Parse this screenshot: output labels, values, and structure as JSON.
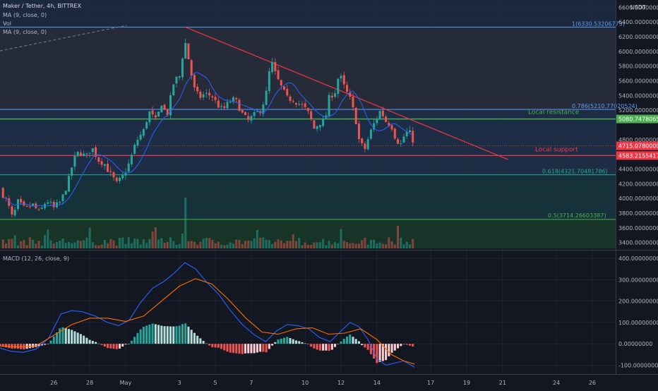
{
  "header": {
    "title": "Maker / Tether, 4h, BITTREX",
    "indicators": [
      "MA (9, close, 0)",
      "Vol",
      "MA (9, close, 0)"
    ],
    "currency": "USDT"
  },
  "macd": {
    "label": "MACD (12, 26, close, 9)"
  },
  "colors": {
    "background": "#131722",
    "bull": "#26a69a",
    "bear": "#ef5350",
    "ma": "#2962ff",
    "signal": "#ff6d00",
    "resistance": "#4caf50",
    "support": "#f23645",
    "trendline": "#f23645",
    "fib_top": "#2962ff",
    "fib_mid": "#4caf50",
    "fib_low": "#089981"
  },
  "annotations": {
    "fib_1": "1(6330.53206773)",
    "fib_0786": "0.786(5210.77020524)",
    "fib_0618": "0.618(4321.70481786)",
    "fib_05": "0.5(3714.26603387)",
    "local_resistance": "Local resistance",
    "local_support": "Local support"
  },
  "price_tags": {
    "resistance": "5080.74780652",
    "current": "4715.07800000",
    "support": "4583.21554175"
  },
  "price_axis": [
    {
      "label": "6600.00000000",
      "v": 6600
    },
    {
      "label": "6400.00000000",
      "v": 6400
    },
    {
      "label": "6200.00000000",
      "v": 6200
    },
    {
      "label": "6000.00000000",
      "v": 6000
    },
    {
      "label": "5800.00000000",
      "v": 5800
    },
    {
      "label": "5600.00000000",
      "v": 5600
    },
    {
      "label": "5400.00000000",
      "v": 5400
    },
    {
      "label": "5200.00000000",
      "v": 5200
    },
    {
      "label": "4800.00000000",
      "v": 4800
    },
    {
      "label": "4400.00000000",
      "v": 4400
    },
    {
      "label": "4200.00000000",
      "v": 4200
    },
    {
      "label": "4000.00000000",
      "v": 4000
    },
    {
      "label": "3800.00000000",
      "v": 3800
    },
    {
      "label": "3600.00000000",
      "v": 3600
    },
    {
      "label": "3400.00000000",
      "v": 3400
    }
  ],
  "macd_axis": [
    {
      "label": "400.00000000",
      "v": 400
    },
    {
      "label": "300.00000000",
      "v": 300
    },
    {
      "label": "200.00000000",
      "v": 200
    },
    {
      "label": "100.00000000",
      "v": 100
    },
    {
      "label": "0.00000000",
      "v": 0
    },
    {
      "label": "-100.00000000",
      "v": -100
    }
  ],
  "date_axis": [
    {
      "label": "26",
      "d": 26
    },
    {
      "label": "28",
      "d": 28
    },
    {
      "label": "May",
      "d": 30
    },
    {
      "label": "3",
      "d": 33
    },
    {
      "label": "5",
      "d": 35
    },
    {
      "label": "7",
      "d": 37
    },
    {
      "label": "10",
      "d": 40
    },
    {
      "label": "12",
      "d": 42
    },
    {
      "label": "14",
      "d": 44
    },
    {
      "label": "17",
      "d": 47
    },
    {
      "label": "19",
      "d": 49
    },
    {
      "label": "21",
      "d": 51
    },
    {
      "label": "24",
      "d": 54
    },
    {
      "label": "26",
      "d": 56
    }
  ],
  "chart_data": {
    "type": "candlestick",
    "price_ylim": [
      3320,
      6660
    ],
    "macd_ylim": [
      -135,
      420
    ],
    "fib_levels": [
      {
        "ratio": "1",
        "price": 6330.53206773
      },
      {
        "ratio": "0.786",
        "price": 5210.77020524
      },
      {
        "ratio": "0.618",
        "price": 4321.70481786
      },
      {
        "ratio": "0.5",
        "price": 3714.26603387
      }
    ],
    "resistance": 5080.74780652,
    "support": 4583.21554175,
    "last_price": 4715.078,
    "trendline": [
      [
        33.33,
        6330
      ],
      [
        51.3,
        4530
      ]
    ],
    "close_path": [
      [
        23.0,
        4130
      ],
      [
        23.4,
        3950
      ],
      [
        23.7,
        3730
      ],
      [
        24.0,
        3950
      ],
      [
        24.4,
        3850
      ],
      [
        24.8,
        3920
      ],
      [
        25.2,
        3800
      ],
      [
        25.6,
        3980
      ],
      [
        26.0,
        3870
      ],
      [
        26.4,
        3960
      ],
      [
        26.8,
        4230
      ],
      [
        27.1,
        4520
      ],
      [
        27.4,
        4640
      ],
      [
        27.8,
        4560
      ],
      [
        28.1,
        4700
      ],
      [
        28.5,
        4520
      ],
      [
        28.8,
        4480
      ],
      [
        29.1,
        4350
      ],
      [
        29.5,
        4200
      ],
      [
        29.8,
        4280
      ],
      [
        30.2,
        4480
      ],
      [
        30.6,
        4780
      ],
      [
        31.0,
        4920
      ],
      [
        31.3,
        5180
      ],
      [
        31.7,
        5050
      ],
      [
        32.0,
        5300
      ],
      [
        32.3,
        5120
      ],
      [
        32.7,
        5600
      ],
      [
        33.0,
        5660
      ],
      [
        33.3,
        6150
      ],
      [
        33.5,
        5900
      ],
      [
        33.8,
        5500
      ],
      [
        34.1,
        5370
      ],
      [
        34.4,
        5420
      ],
      [
        34.8,
        5400
      ],
      [
        35.1,
        5280
      ],
      [
        35.4,
        5200
      ],
      [
        35.8,
        5320
      ],
      [
        36.1,
        5350
      ],
      [
        36.5,
        5150
      ],
      [
        36.8,
        5050
      ],
      [
        37.1,
        5120
      ],
      [
        37.5,
        5200
      ],
      [
        37.8,
        5380
      ],
      [
        38.1,
        5880
      ],
      [
        38.4,
        5650
      ],
      [
        38.7,
        5500
      ],
      [
        39.0,
        5360
      ],
      [
        39.3,
        5350
      ],
      [
        39.6,
        5300
      ],
      [
        39.9,
        5250
      ],
      [
        40.2,
        5150
      ],
      [
        40.5,
        4950
      ],
      [
        40.8,
        5030
      ],
      [
        41.1,
        5050
      ],
      [
        41.4,
        5450
      ],
      [
        41.6,
        5380
      ],
      [
        41.9,
        5700
      ],
      [
        42.2,
        5500
      ],
      [
        42.5,
        5350
      ],
      [
        42.8,
        5100
      ],
      [
        43.0,
        4800
      ],
      [
        43.3,
        4650
      ],
      [
        43.6,
        4880
      ],
      [
        43.9,
        5050
      ],
      [
        44.2,
        5200
      ],
      [
        44.5,
        5050
      ],
      [
        44.8,
        5000
      ],
      [
        45.0,
        4850
      ],
      [
        45.3,
        4720
      ],
      [
        45.6,
        4900
      ],
      [
        45.9,
        4880
      ],
      [
        46.1,
        4715
      ]
    ],
    "macd_path": [
      [
        23.0,
        -20
      ],
      [
        23.6,
        -35
      ],
      [
        24.3,
        -40
      ],
      [
        25.0,
        -25
      ],
      [
        25.7,
        25
      ],
      [
        26.4,
        140
      ],
      [
        27.0,
        155
      ],
      [
        27.6,
        150
      ],
      [
        28.3,
        130
      ],
      [
        29.0,
        100
      ],
      [
        29.6,
        85
      ],
      [
        30.2,
        110
      ],
      [
        30.8,
        190
      ],
      [
        31.5,
        260
      ],
      [
        32.1,
        290
      ],
      [
        32.7,
        330
      ],
      [
        33.3,
        380
      ],
      [
        33.9,
        350
      ],
      [
        34.5,
        290
      ],
      [
        35.2,
        230
      ],
      [
        35.8,
        160
      ],
      [
        36.5,
        90
      ],
      [
        37.2,
        40
      ],
      [
        37.8,
        10
      ],
      [
        38.4,
        60
      ],
      [
        39.0,
        90
      ],
      [
        39.6,
        85
      ],
      [
        40.2,
        70
      ],
      [
        40.8,
        30
      ],
      [
        41.4,
        10
      ],
      [
        42.0,
        60
      ],
      [
        42.5,
        100
      ],
      [
        43.0,
        80
      ],
      [
        43.5,
        20
      ],
      [
        44.0,
        -70
      ],
      [
        44.5,
        -100
      ],
      [
        45.0,
        -90
      ],
      [
        45.5,
        -80
      ],
      [
        46.1,
        -110
      ]
    ],
    "signal_path": [
      [
        23.0,
        -10
      ],
      [
        24.0,
        -15
      ],
      [
        25.0,
        -10
      ],
      [
        26.0,
        40
      ],
      [
        27.0,
        90
      ],
      [
        28.0,
        120
      ],
      [
        29.0,
        120
      ],
      [
        30.0,
        105
      ],
      [
        31.0,
        130
      ],
      [
        32.0,
        200
      ],
      [
        33.0,
        270
      ],
      [
        33.9,
        305
      ],
      [
        34.8,
        280
      ],
      [
        35.7,
        210
      ],
      [
        36.7,
        120
      ],
      [
        37.6,
        55
      ],
      [
        38.5,
        45
      ],
      [
        39.5,
        70
      ],
      [
        40.4,
        75
      ],
      [
        41.3,
        45
      ],
      [
        42.2,
        50
      ],
      [
        43.1,
        70
      ],
      [
        44.0,
        20
      ],
      [
        44.8,
        -50
      ],
      [
        45.5,
        -80
      ],
      [
        46.1,
        -95
      ]
    ],
    "volume_max": 20
  }
}
